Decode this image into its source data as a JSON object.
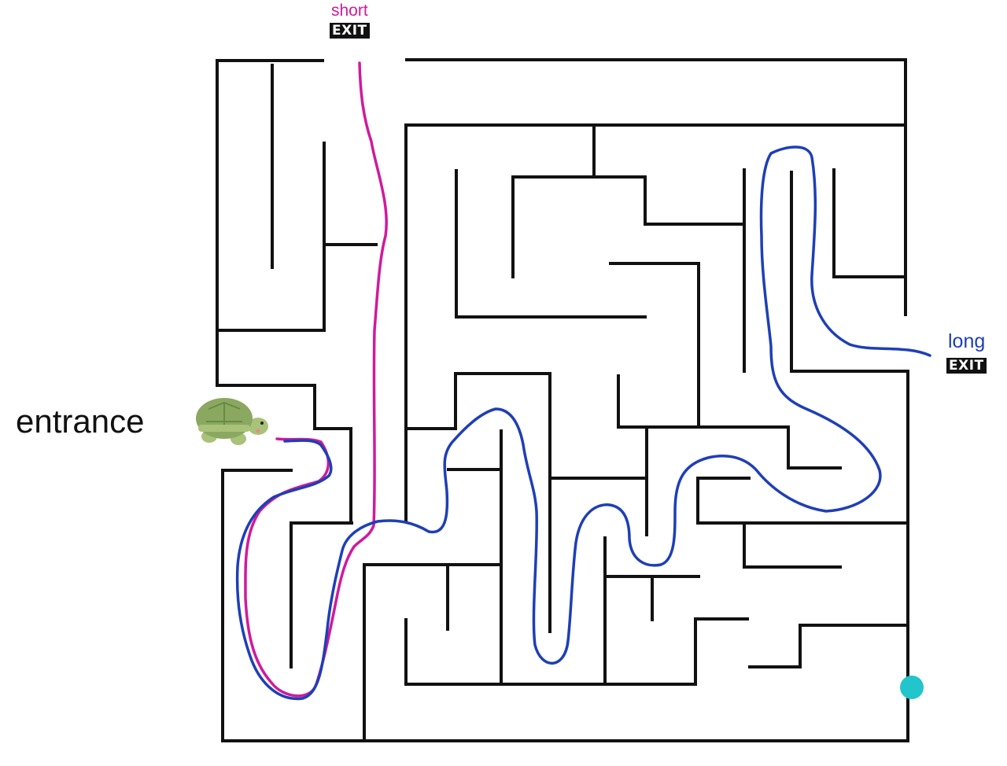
{
  "labels": {
    "entrance": "entrance",
    "short_route": "short",
    "long_route": "long",
    "exit_top": "EXIT",
    "exit_right": "EXIT"
  },
  "colors": {
    "wall": "#111111",
    "short_path": "#d01a9c",
    "long_path": "#1e3fb5",
    "marker": "#22c5cc",
    "turtle_shell": "#8aa860",
    "turtle_skin": "#a9c27a"
  },
  "icons": {
    "entrance": "turtle-icon",
    "goal": "cyan-dot-marker"
  }
}
